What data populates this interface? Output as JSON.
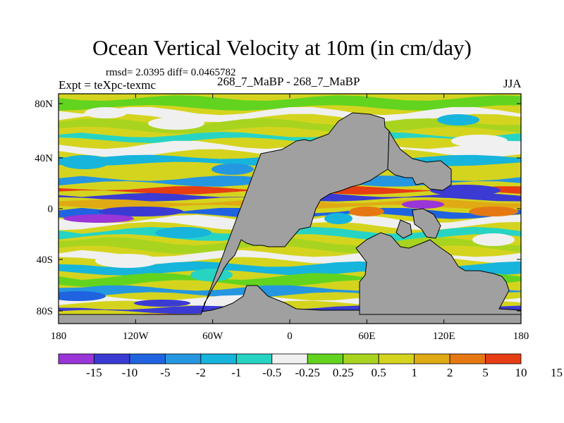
{
  "title": "Ocean Vertical Velocity at 10m (in cm/day)",
  "stats": "rmsd= 2.0395 diff= 0.0465782",
  "experiment": "Expt = teXpc-texmc",
  "case": "268_7_MaBP - 268_7_MaBP",
  "season": "JJA",
  "colors": {
    "land": "#a0a0a0",
    "neutral": "#f0f0f0",
    "scale": [
      "#9a35d8",
      "#3b3bd4",
      "#1f63e0",
      "#2596e0",
      "#17b4dc",
      "#27d4c4",
      "#f0f0f0",
      "#62d41f",
      "#a8d41f",
      "#d4d41f",
      "#e0aa14",
      "#e67814",
      "#e63d14"
    ]
  },
  "map": {
    "lon_ticks": [
      "180",
      "120W",
      "60W",
      "0",
      "60E",
      "120E",
      "180"
    ],
    "lat_ticks": [
      "80N",
      "40N",
      "0",
      "40S",
      "80S"
    ]
  },
  "colorbar": {
    "levels": [
      "-15",
      "-10",
      "-5",
      "-2",
      "-1",
      "-0.5",
      "-0.25",
      "0.25",
      "0.5",
      "1",
      "2",
      "5",
      "10",
      "15"
    ]
  }
}
